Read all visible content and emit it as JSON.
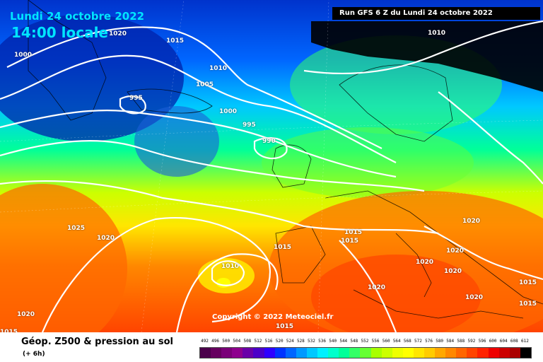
{
  "header": {
    "date_label": "Lundi 24 octobre 2022",
    "time_label": "14:00 locale",
    "run_label": "Run GFS 6 Z du Lundi 24 octobre 2022"
  },
  "map": {
    "copyright": "Copyright © 2022 Meteociel.fr",
    "isobar_labels": [
      "1020",
      "1015",
      "1000",
      "1010",
      "1005",
      "995",
      "1000",
      "995",
      "990",
      "1010",
      "1025",
      "1020",
      "1015",
      "1015",
      "1015",
      "1010",
      "1020",
      "1020",
      "1020",
      "1020",
      "1020",
      "1015",
      "1015",
      "1020",
      "1015",
      "1010",
      "1010"
    ]
  },
  "footer": {
    "title": "Géop. Z500 & pression au sol",
    "subtitle": "(+ 6h)"
  },
  "color_scale": {
    "labels": [
      "492",
      "496",
      "500",
      "504",
      "508",
      "512",
      "516",
      "520",
      "524",
      "528",
      "532",
      "536",
      "540",
      "544",
      "548",
      "552",
      "556",
      "560",
      "564",
      "568",
      "572",
      "576",
      "580",
      "584",
      "588",
      "592",
      "596",
      "600",
      "604",
      "608",
      "612"
    ],
    "colors": [
      "#4b004b",
      "#66005f",
      "#7a0078",
      "#8e008e",
      "#6a00a8",
      "#4b00c8",
      "#2e00ff",
      "#0033ff",
      "#0066ff",
      "#0099ff",
      "#00c8ff",
      "#00f0ff",
      "#00ffcc",
      "#00ff99",
      "#33ff66",
      "#66ff33",
      "#a8ff00",
      "#ccff00",
      "#eeff00",
      "#ffff00",
      "#ffe600",
      "#ffcc00",
      "#ffa800",
      "#ff8800",
      "#ff6600",
      "#ff4400",
      "#ff2200",
      "#ee0000",
      "#cc0000",
      "#aa0000",
      "#000000"
    ]
  }
}
